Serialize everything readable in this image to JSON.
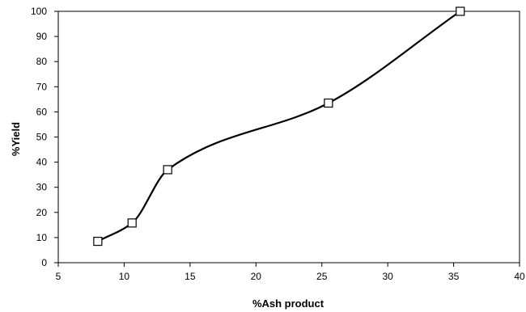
{
  "chart_data": {
    "type": "line",
    "title": "",
    "xlabel": "%Ash product",
    "ylabel": "%Yield",
    "xlim": [
      5,
      40
    ],
    "ylim": [
      0,
      100
    ],
    "xticks": [
      5,
      10,
      15,
      20,
      25,
      30,
      35,
      40
    ],
    "yticks": [
      0,
      10,
      20,
      30,
      40,
      50,
      60,
      70,
      80,
      90,
      100
    ],
    "grid": false,
    "legend": "none",
    "series": [
      {
        "x": [
          8.0,
          10.6,
          13.3,
          25.5,
          35.5
        ],
        "y": [
          8.5,
          15.8,
          37.0,
          63.5,
          100.0
        ],
        "marker": "open-square",
        "line": "smooth",
        "color": "#000000"
      }
    ]
  }
}
